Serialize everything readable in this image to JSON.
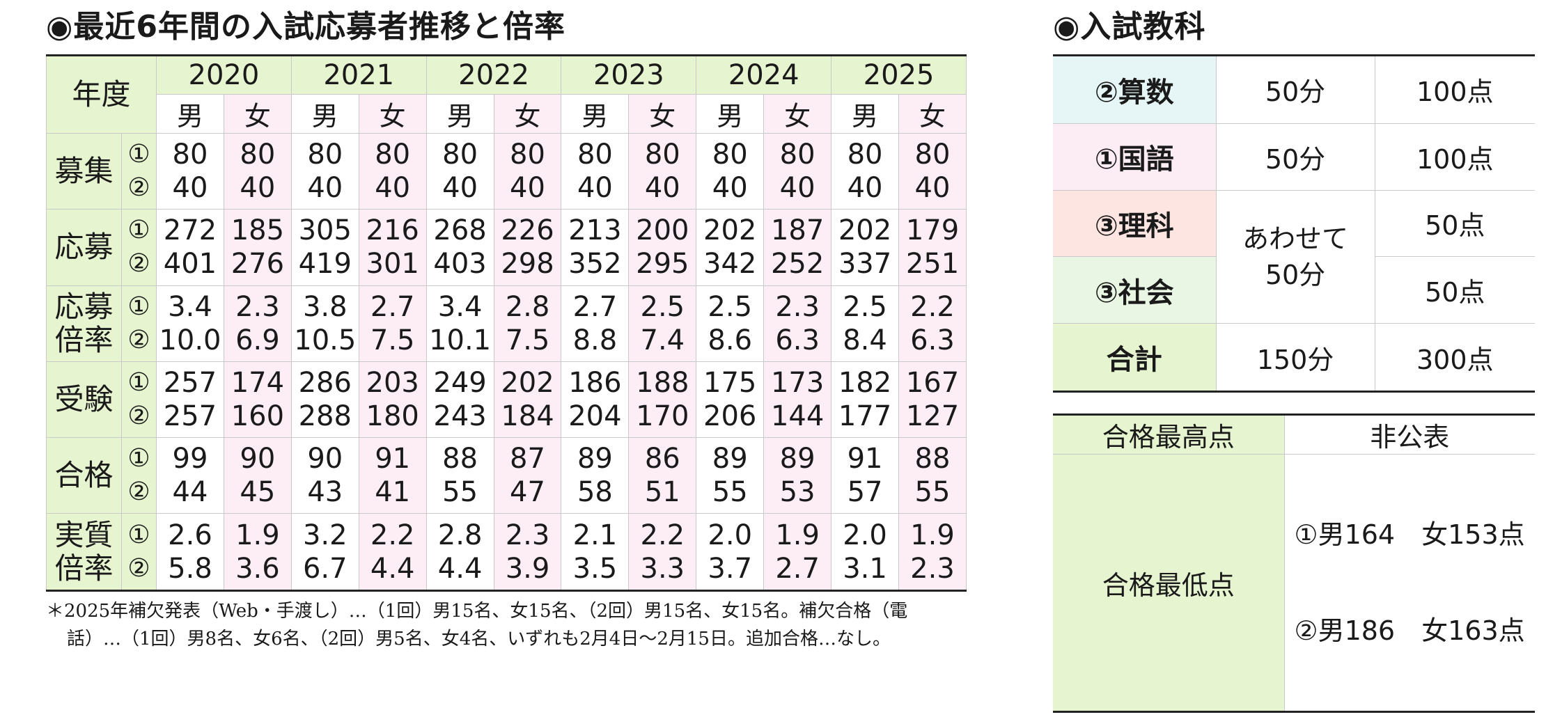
{
  "left": {
    "title": "◉最近6年間の入試応募者推移と倍率",
    "header": {
      "year_label": "年度",
      "male": "男",
      "female": "女"
    },
    "years": [
      "2020",
      "2021",
      "2022",
      "2023",
      "2024",
      "2025"
    ],
    "round_marks": [
      "①",
      "②"
    ],
    "rows": [
      {
        "label": [
          "募集"
        ],
        "r1": [
          "80",
          "80",
          "80",
          "80",
          "80",
          "80",
          "80",
          "80",
          "80",
          "80",
          "80",
          "80"
        ],
        "r2": [
          "40",
          "40",
          "40",
          "40",
          "40",
          "40",
          "40",
          "40",
          "40",
          "40",
          "40",
          "40"
        ]
      },
      {
        "label": [
          "応募"
        ],
        "r1": [
          "272",
          "185",
          "305",
          "216",
          "268",
          "226",
          "213",
          "200",
          "202",
          "187",
          "202",
          "179"
        ],
        "r2": [
          "401",
          "276",
          "419",
          "301",
          "403",
          "298",
          "352",
          "295",
          "342",
          "252",
          "337",
          "251"
        ]
      },
      {
        "label": [
          "応募",
          "倍率"
        ],
        "r1": [
          "3.4",
          "2.3",
          "3.8",
          "2.7",
          "3.4",
          "2.8",
          "2.7",
          "2.5",
          "2.5",
          "2.3",
          "2.5",
          "2.2"
        ],
        "r2": [
          "10.0",
          "6.9",
          "10.5",
          "7.5",
          "10.1",
          "7.5",
          "8.8",
          "7.4",
          "8.6",
          "6.3",
          "8.4",
          "6.3"
        ]
      },
      {
        "label": [
          "受験"
        ],
        "r1": [
          "257",
          "174",
          "286",
          "203",
          "249",
          "202",
          "186",
          "188",
          "175",
          "173",
          "182",
          "167"
        ],
        "r2": [
          "257",
          "160",
          "288",
          "180",
          "243",
          "184",
          "204",
          "170",
          "206",
          "144",
          "177",
          "127"
        ]
      },
      {
        "label": [
          "合格"
        ],
        "r1": [
          "99",
          "90",
          "90",
          "91",
          "88",
          "87",
          "89",
          "86",
          "89",
          "89",
          "91",
          "88"
        ],
        "r2": [
          "44",
          "45",
          "43",
          "41",
          "55",
          "47",
          "58",
          "51",
          "55",
          "53",
          "57",
          "55"
        ]
      },
      {
        "label": [
          "実質",
          "倍率"
        ],
        "r1": [
          "2.6",
          "1.9",
          "3.2",
          "2.2",
          "2.8",
          "2.3",
          "2.1",
          "2.2",
          "2.0",
          "1.9",
          "2.0",
          "1.9"
        ],
        "r2": [
          "5.8",
          "3.6",
          "6.7",
          "4.4",
          "4.4",
          "3.9",
          "3.5",
          "3.3",
          "3.7",
          "2.7",
          "3.1",
          "2.3"
        ]
      }
    ],
    "footnote": [
      "＊2025年補欠発表（Web・手渡し）…（1回）男15名、女15名、（2回）男15名、女15名。補欠合格（電",
      "話）…（1回）男8名、女6名、（2回）男5名、女4名、いずれも2月4日〜2月15日。追加合格…なし。"
    ]
  },
  "right": {
    "title": "◉入試教科",
    "subjects": [
      {
        "name": "②算数",
        "time": "50分",
        "points": "100点",
        "color": "#e6f6f6"
      },
      {
        "name": "①国語",
        "time": "50分",
        "points": "100点",
        "color": "#fcecf4"
      },
      {
        "name": "③理科",
        "points": "50点",
        "color": "#fde6e2"
      },
      {
        "name": "③社会",
        "points": "50点",
        "color": "#eaf6e4"
      }
    ],
    "combined_time": [
      "あわせて",
      "50分"
    ],
    "total": {
      "name": "合計",
      "time": "150分",
      "points": "300点",
      "color": "#e6f4d0"
    },
    "scores": {
      "highest_label": "合格最高点",
      "highest_value": "非公表",
      "lowest_label": "合格最低点",
      "lowest_values": [
        "①男164　女153点",
        "②男186　女163点"
      ]
    }
  }
}
